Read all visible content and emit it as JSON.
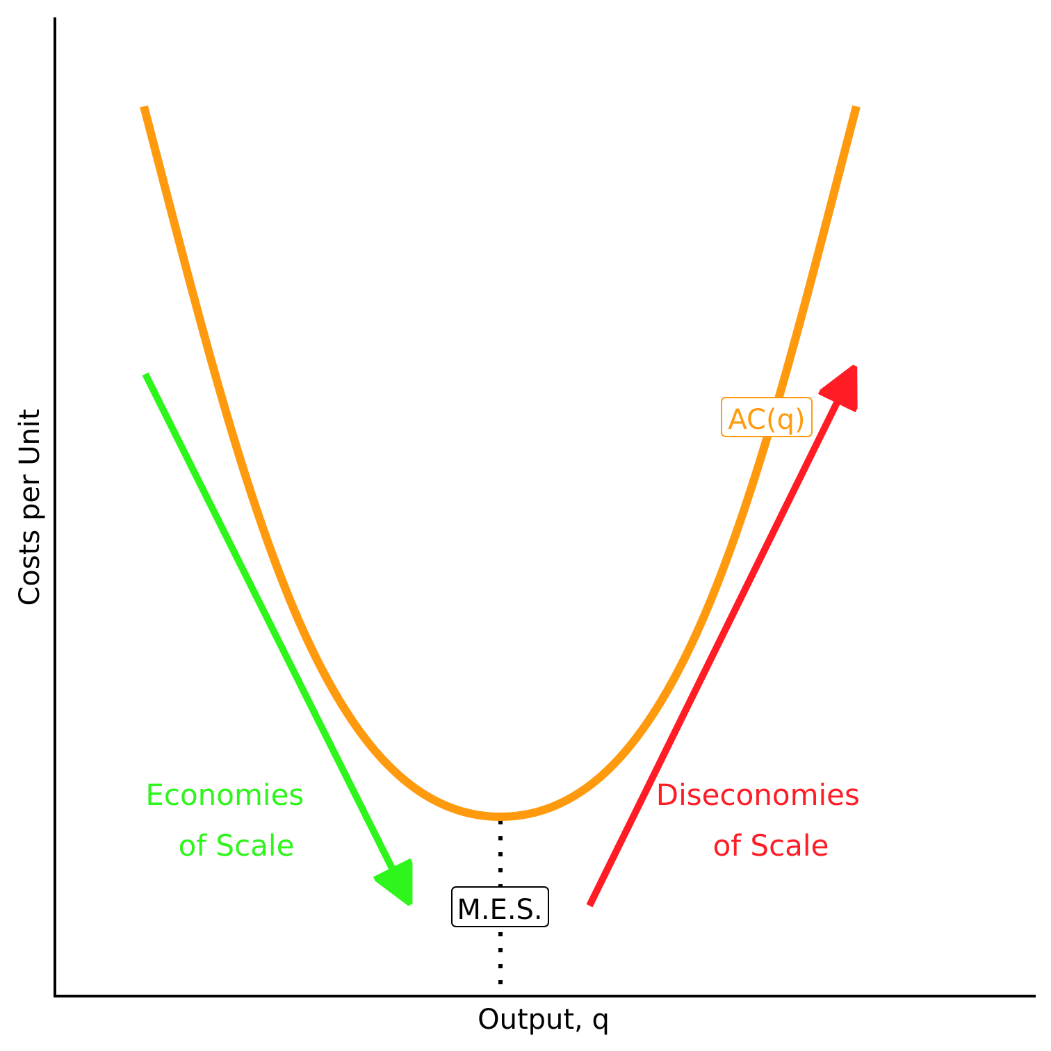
{
  "axes": {
    "y_label": "Costs per Unit",
    "x_label": "Output, q"
  },
  "curve": {
    "label": "AC(q)",
    "color": "#FF9A0E"
  },
  "mes": {
    "label": "M.E.S."
  },
  "economies": {
    "line1": "Economies",
    "line2": "of Scale",
    "color": "#2EF51C"
  },
  "diseconomies": {
    "line1": "Diseconomies",
    "line2": "of Scale",
    "color": "#FF1C24"
  }
}
